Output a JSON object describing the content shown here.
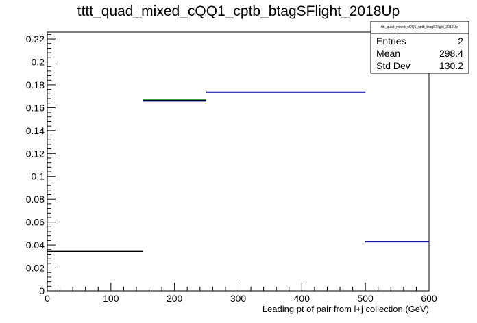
{
  "chart_data": {
    "type": "step",
    "title": "tttt_quad_mixed_cQQ1_cptb_btagSFlight_2018Up",
    "xlabel": "Leading pt of pair from l+j collection (GeV)",
    "ylabel": "",
    "xlim": [
      0,
      600
    ],
    "ylim": [
      0,
      0.226
    ],
    "x_ticks": [
      "0",
      "100",
      "200",
      "300",
      "400",
      "500",
      "600"
    ],
    "x_tick_values": [
      0,
      100,
      200,
      300,
      400,
      500,
      600
    ],
    "y_ticks": [
      "0",
      "0.02",
      "0.04",
      "0.06",
      "0.08",
      "0.1",
      "0.12",
      "0.14",
      "0.16",
      "0.18",
      "0.2",
      "0.22"
    ],
    "y_tick_values": [
      0,
      0.02,
      0.04,
      0.06,
      0.08,
      0.1,
      0.12,
      0.14,
      0.16,
      0.18,
      0.2,
      0.22
    ],
    "series": [
      {
        "color": "#000000",
        "bins": [
          {
            "x0": 0,
            "x1": 150,
            "y": 0.0345
          },
          {
            "x0": 150,
            "x1": 250,
            "y": 0.1665
          },
          {
            "x0": 250,
            "x1": 500,
            "y": 0.1735
          },
          {
            "x0": 500,
            "x1": 600,
            "y": 0.043
          }
        ]
      },
      {
        "color": "#2aa02a",
        "bins": [
          {
            "x0": 150,
            "x1": 250,
            "y": 0.1672
          }
        ]
      },
      {
        "color": "#000080",
        "bins": [
          {
            "x0": 150,
            "x1": 250,
            "y": 0.166
          },
          {
            "x0": 250,
            "x1": 500,
            "y": 0.1735
          },
          {
            "x0": 500,
            "x1": 600,
            "y": 0.043
          }
        ]
      }
    ],
    "stats": {
      "name": "tttt_quad_mixed_cQQ1_cptb_btagSFlight_2018Up",
      "rows": [
        {
          "label": "Entries",
          "value": "2"
        },
        {
          "label": "Mean",
          "value": "298.4"
        },
        {
          "label": "Std Dev",
          "value": "130.2"
        }
      ]
    }
  }
}
